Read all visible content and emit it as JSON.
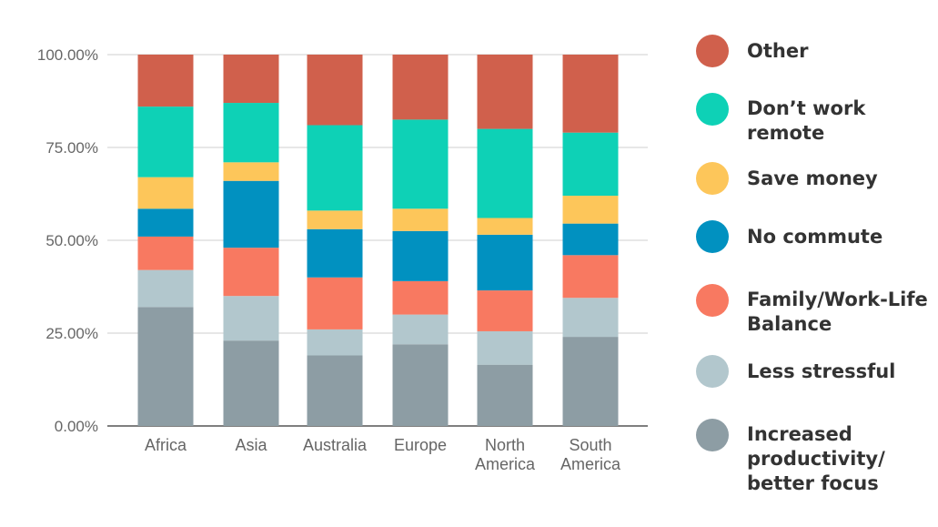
{
  "chart_data": {
    "type": "bar",
    "stacked": true,
    "categories": [
      [
        "Africa"
      ],
      [
        "Asia"
      ],
      [
        "Australia"
      ],
      [
        "Europe"
      ],
      [
        "North",
        "America"
      ],
      [
        "South",
        "America"
      ]
    ],
    "series": [
      {
        "name": [
          "Increased",
          "productivity/",
          "better focus"
        ],
        "color": "#8d9da4",
        "values": [
          32,
          23,
          19,
          22,
          16.5,
          24
        ]
      },
      {
        "name": [
          "Less stressful"
        ],
        "color": "#b2c7cd",
        "values": [
          10,
          12,
          7,
          8,
          9,
          10.5
        ]
      },
      {
        "name": [
          "Family/Work-Life",
          "Balance"
        ],
        "color": "#f87961",
        "values": [
          9,
          13,
          14,
          9,
          11,
          11.5
        ]
      },
      {
        "name": [
          "No commute"
        ],
        "color": "#0191c0",
        "values": [
          7.5,
          18,
          13,
          13.5,
          15,
          8.5
        ]
      },
      {
        "name": [
          "Save money"
        ],
        "color": "#fdc65a",
        "values": [
          8.5,
          5,
          5,
          6,
          4.5,
          7.5
        ]
      },
      {
        "name": [
          "Don’t work",
          "remote"
        ],
        "color": "#0ed1b6",
        "values": [
          19,
          16,
          23,
          24,
          24,
          17
        ]
      },
      {
        "name": [
          "Other"
        ],
        "color": "#d0604c",
        "values": [
          14,
          13,
          19,
          17.5,
          20,
          21
        ]
      }
    ],
    "yticks": [
      "0.00%",
      "25.00%",
      "50.00%",
      "75.00%",
      "100.00%"
    ],
    "ylim": [
      0,
      100
    ],
    "grid": true,
    "legend": "right"
  }
}
